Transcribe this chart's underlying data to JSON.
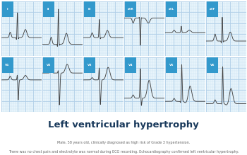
{
  "title": "Left ventricular hypertrophy",
  "subtitle1": "Male, 58 years old, clinically diagnosed as high risk of Grade 3 hypertension.",
  "subtitle2": "There was no chest pain and electrolyte was normal during ECG recording. Echocardiography confirmed left ventricular hypertrophy.",
  "title_color": "#1a3a5c",
  "subtitle_color": "#666666",
  "bg_color": "#ffffff",
  "grid_bg": "#e8f4fb",
  "grid_minor_color": "#c5dff0",
  "grid_major_color": "#b0cfe8",
  "ecg_color": "#444444",
  "label_bg": "#3399cc",
  "label_text": "#ffffff",
  "leads": [
    "I",
    "II",
    "III",
    "aVR",
    "aVL",
    "aVF",
    "V1",
    "V2",
    "V3",
    "V4",
    "V5",
    "V6"
  ],
  "rows": 2,
  "cols": 6
}
